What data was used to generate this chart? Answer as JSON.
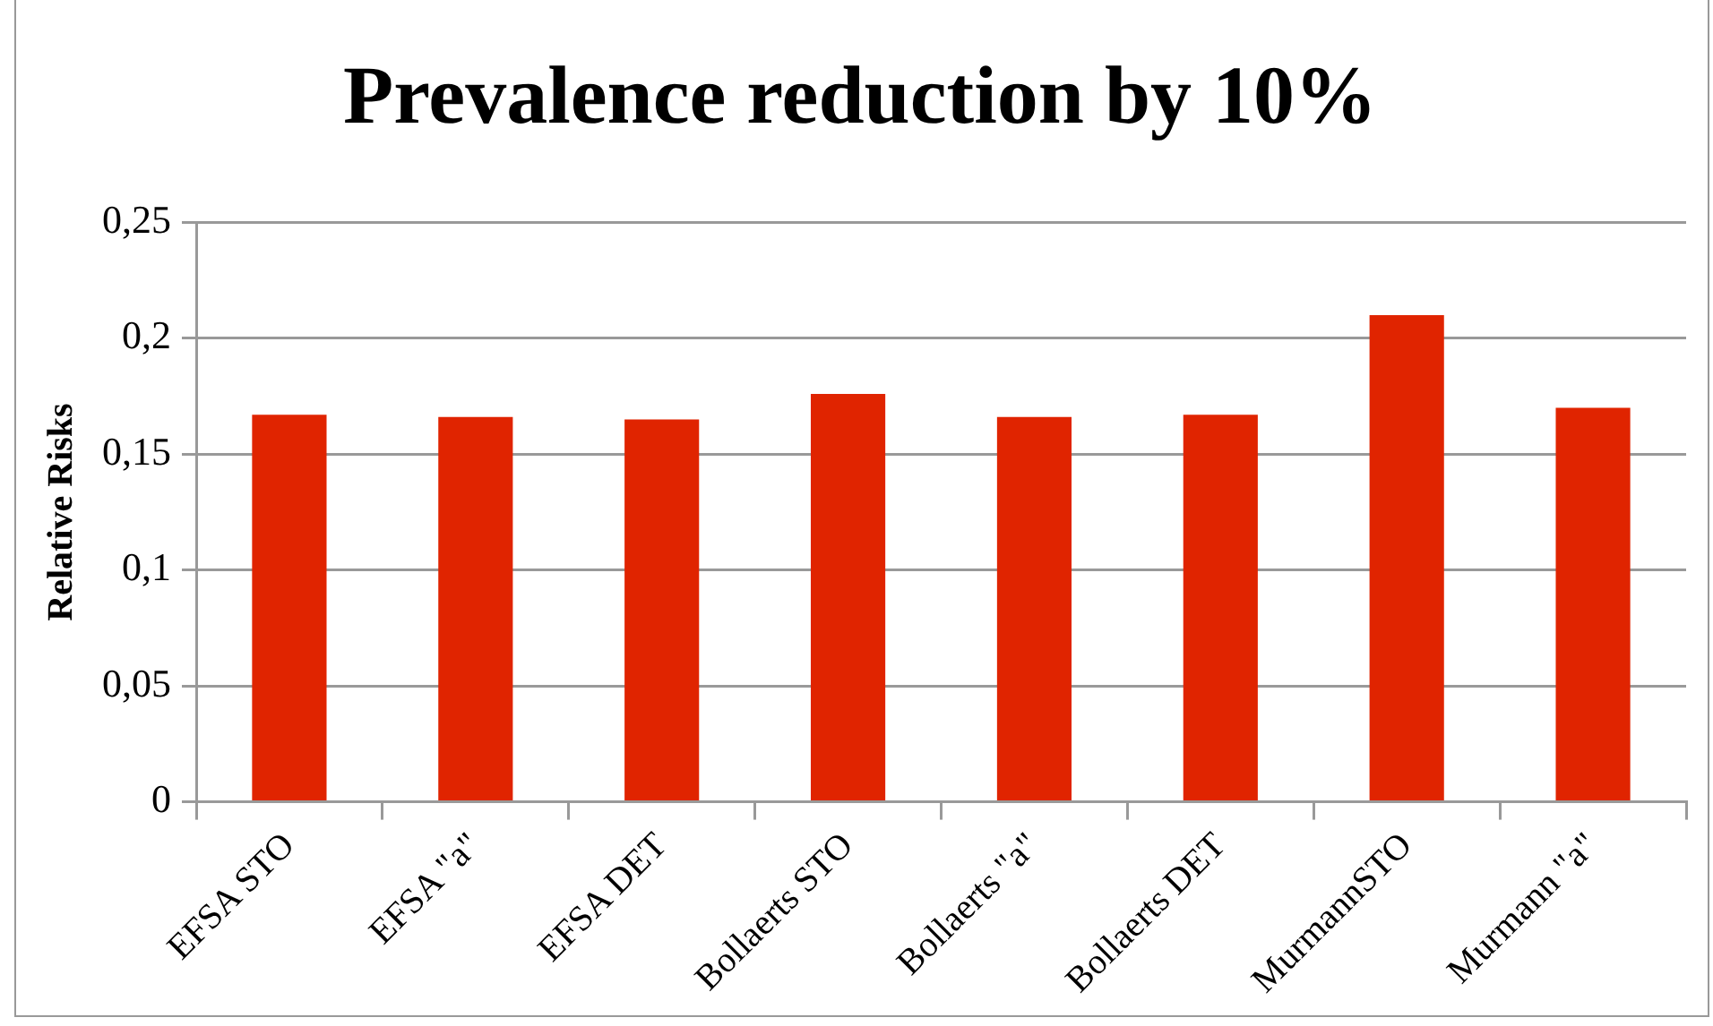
{
  "chart_data": {
    "type": "bar",
    "title": "Prevalence reduction by 10%",
    "ylabel": "Relative Risks",
    "categories": [
      "EFSA STO",
      "EFSA \"a\"",
      "EFSA DET",
      "Bollaerts STO",
      "Bollaerts \"a\"",
      "Bollaerts DET",
      "MurmannSTO",
      "Murmann \"a\""
    ],
    "values": [
      0.167,
      0.166,
      0.165,
      0.176,
      0.166,
      0.167,
      0.21,
      0.17
    ],
    "color": "#e02400",
    "ylim": [
      0,
      0.25
    ],
    "yticks": [
      {
        "value": 0,
        "label": "0"
      },
      {
        "value": 0.05,
        "label": "0,05"
      },
      {
        "value": 0.1,
        "label": "0,1"
      },
      {
        "value": 0.15,
        "label": "0,15"
      },
      {
        "value": 0.2,
        "label": "0,2"
      },
      {
        "value": 0.25,
        "label": "0,25"
      }
    ],
    "grid": "y",
    "legend": false
  }
}
